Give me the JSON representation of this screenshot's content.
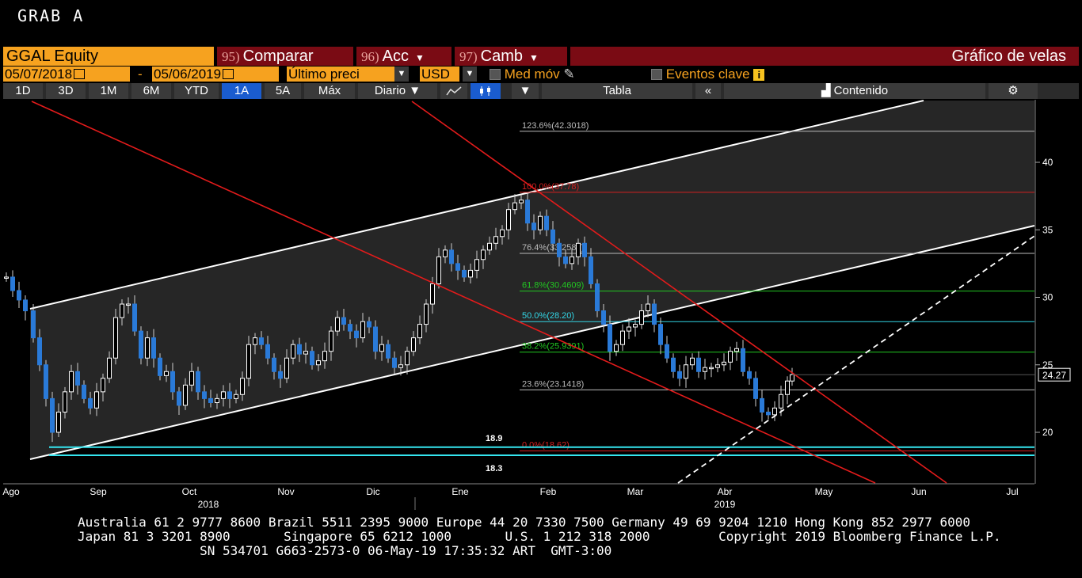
{
  "title": "GRAB A",
  "toolbar": {
    "ticker": "GGAL Equity",
    "compare_num": "95)",
    "compare": "Comparar",
    "acc_num": "96)",
    "acc": "Acc",
    "camb_num": "97)",
    "camb": "Camb",
    "chart_type": "Gráfico de velas"
  },
  "options": {
    "start_date": "05/07/2018",
    "dash": "-",
    "end_date": "05/06/2019",
    "price_field": "Último preci",
    "currency": "USD",
    "moving_avg": "Med móv",
    "key_events": "Eventos clave"
  },
  "periods": [
    "1D",
    "3D",
    "1M",
    "6M",
    "YTD",
    "1A",
    "5A",
    "Máx"
  ],
  "active_period": "1A",
  "frequency": "Diario",
  "table": "Tabla",
  "content": "Contenido",
  "chart_data": {
    "type": "candlestick",
    "ylim": [
      16,
      44
    ],
    "y_ticks": [
      20,
      25,
      30,
      35,
      40
    ],
    "x_tick_labels": [
      "Ago",
      "Sep",
      "Oct",
      "Nov",
      "Dic",
      "Ene",
      "Feb",
      "Mar",
      "Abr",
      "May",
      "Jun",
      "Jul"
    ],
    "year_labels": [
      "2018",
      "2019"
    ],
    "last_price": "24.27",
    "fib_levels": [
      {
        "label": "123.6%(42.3018)",
        "value": 42.3018,
        "color": "#bbbbbb"
      },
      {
        "label": "100.0%(37.78)",
        "value": 37.78,
        "color": "#d42020"
      },
      {
        "label": "76.4%(33.2582)",
        "value": 33.2582,
        "color": "#bbbbbb"
      },
      {
        "label": "61.8%(30.4609)",
        "value": 30.4609,
        "color": "#22c822"
      },
      {
        "label": "50.0%(28.20)",
        "value": 28.2,
        "color": "#33d6e6"
      },
      {
        "label": "38.2%(25.9391)",
        "value": 25.9391,
        "color": "#22c822"
      },
      {
        "label": "23.6%(23.1418)",
        "value": 23.1418,
        "color": "#bbbbbb"
      },
      {
        "label": "0.0%(18.62)",
        "value": 18.62,
        "color": "#d42020"
      }
    ],
    "support_levels": [
      {
        "label": "18.9",
        "value": 18.9
      },
      {
        "label": "18.3",
        "value": 18.3
      }
    ]
  },
  "footer": {
    "line1": "Australia 61 2 9777 8600 Brazil 5511 2395 9000 Europe 44 20 7330 7500 Germany 49 69 9204 1210 Hong Kong 852 2977 6000",
    "line2": "Japan 81 3 3201 8900       Singapore 65 6212 1000       U.S. 1 212 318 2000         Copyright 2019 Bloomberg Finance L.P.",
    "line3": "                SN 534701 G663-2573-0 06-May-19 17:35:32 ART  GMT-3:00"
  }
}
